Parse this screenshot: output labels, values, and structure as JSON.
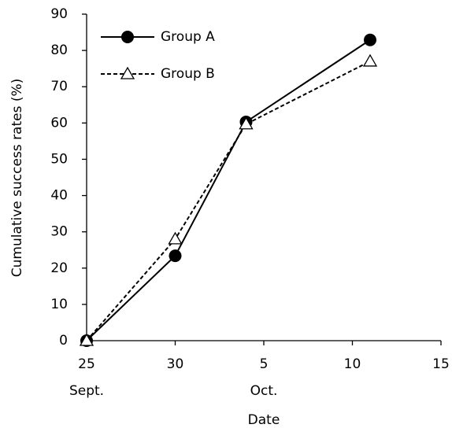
{
  "chart_data": {
    "type": "line",
    "x_label": "Date",
    "y_label": "Cumulative success rates (%)",
    "x": [
      0,
      5,
      9,
      16
    ],
    "xlim": [
      0,
      20
    ],
    "xticks": [
      {
        "value": 0,
        "label": "25"
      },
      {
        "value": 5,
        "label": "30"
      },
      {
        "value": 10,
        "label": "5"
      },
      {
        "value": 15,
        "label": "10"
      },
      {
        "value": 20,
        "label": "15"
      }
    ],
    "x_month_labels": [
      {
        "value": 0,
        "label": "Sept."
      },
      {
        "value": 10,
        "label": "Oct."
      }
    ],
    "ylim": [
      0,
      90
    ],
    "yticks": [
      0,
      10,
      20,
      30,
      40,
      50,
      60,
      70,
      80,
      90
    ],
    "legend": "upper left",
    "series": [
      {
        "name": "Group A",
        "color": "#000000",
        "marker": "circle",
        "dash": "solid",
        "values": [
          0,
          23.4,
          60.3,
          82.9
        ]
      },
      {
        "name": "Group B",
        "color": "#000000",
        "marker": "triangle",
        "dash": "dashed",
        "values": [
          0,
          28,
          59.7,
          77
        ]
      }
    ]
  }
}
